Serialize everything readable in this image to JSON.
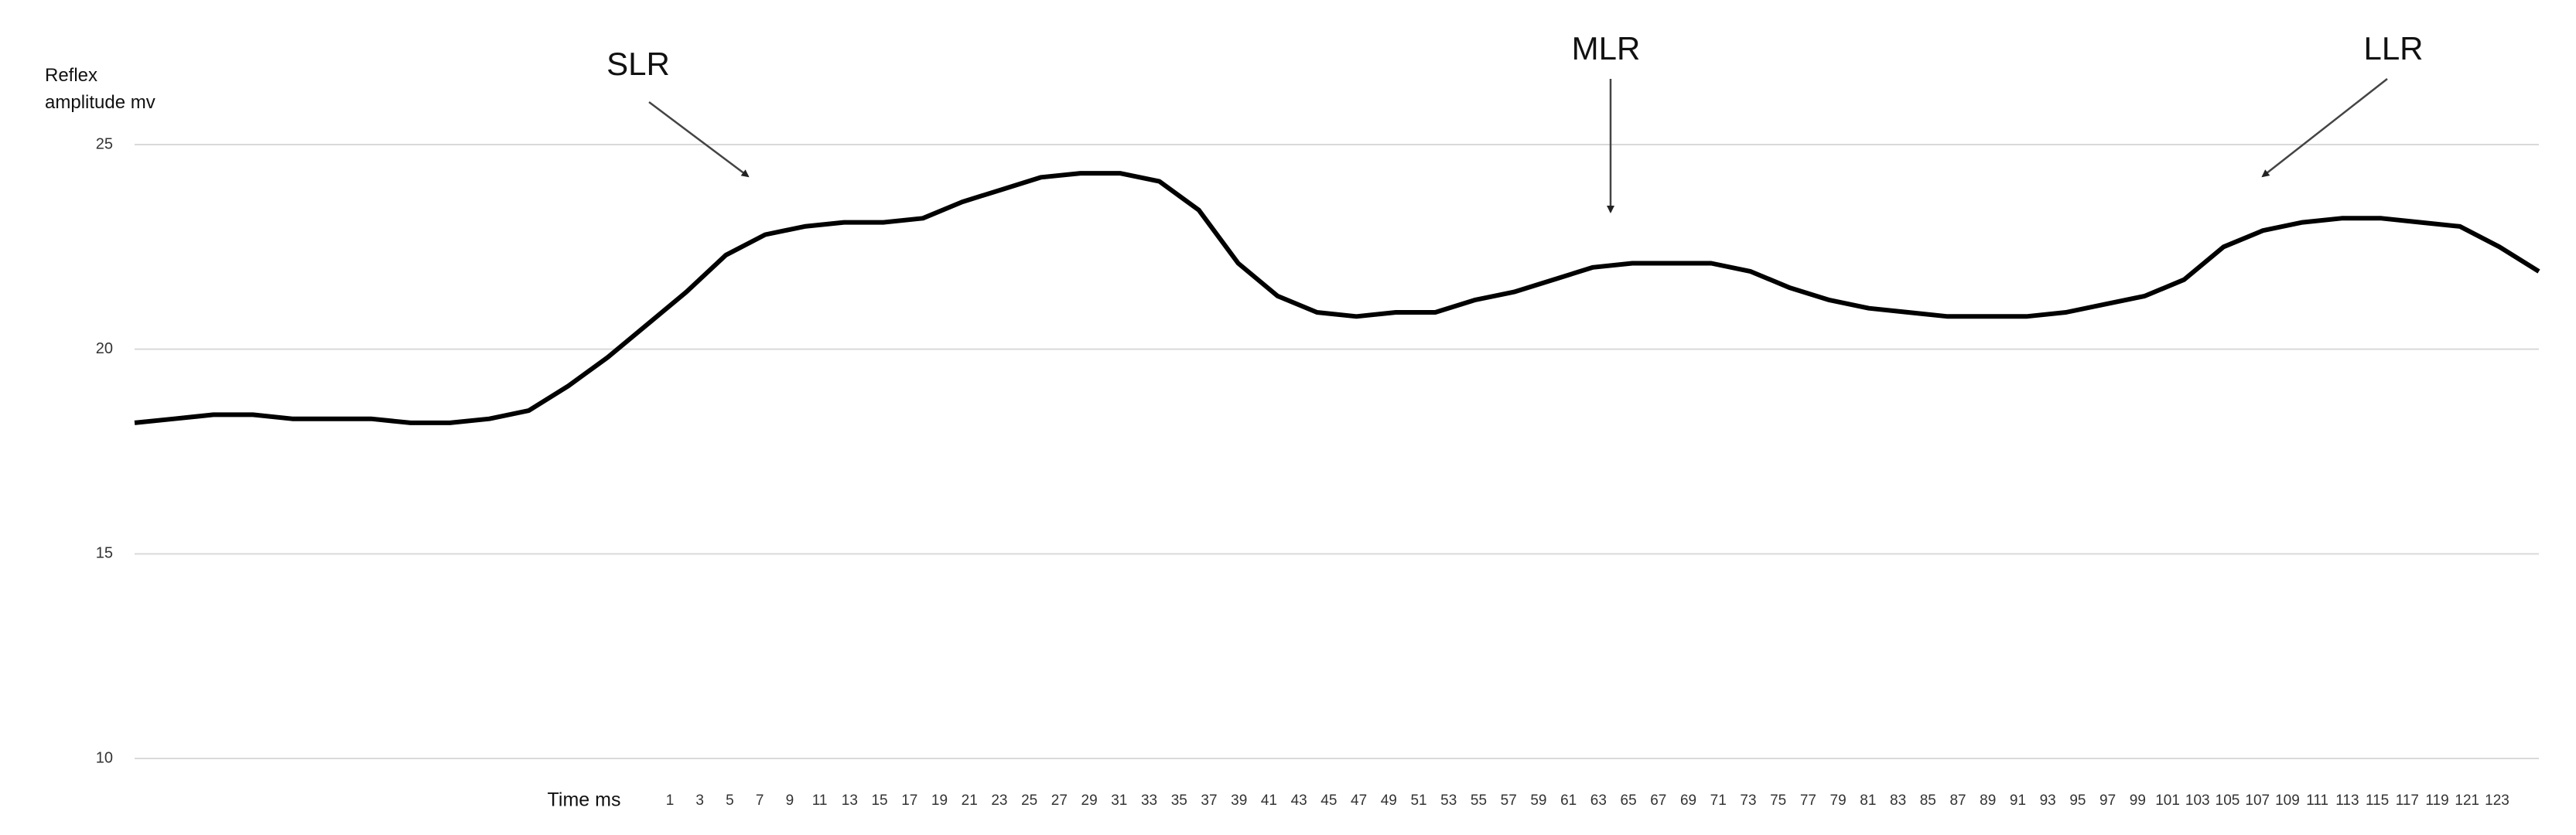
{
  "chart_data": {
    "type": "line",
    "y_label": "Reflex amplitude mv",
    "x_label": "Time ms",
    "annotations": [
      "SLR",
      "MLR",
      "LLR"
    ],
    "categories": [
      "1",
      "3",
      "5",
      "7",
      "9",
      "11",
      "13",
      "15",
      "17",
      "19",
      "21",
      "23",
      "25",
      "27",
      "29",
      "31",
      "33",
      "35",
      "37",
      "39",
      "41",
      "43",
      "45",
      "47",
      "49",
      "51",
      "53",
      "55",
      "57",
      "59",
      "61",
      "63",
      "65",
      "67",
      "69",
      "71",
      "73",
      "75",
      "77",
      "79",
      "81",
      "83",
      "85",
      "87",
      "89",
      "91",
      "93",
      "95",
      "97",
      "99",
      "101",
      "103",
      "105",
      "107",
      "109",
      "111",
      "113",
      "115",
      "117",
      "119",
      "121",
      "123"
    ],
    "values": [
      18.2,
      18.3,
      18.4,
      18.4,
      18.3,
      18.3,
      18.3,
      18.2,
      18.2,
      18.3,
      18.5,
      19.1,
      19.8,
      20.6,
      21.4,
      22.3,
      22.8,
      23.0,
      23.1,
      23.1,
      23.2,
      23.6,
      23.9,
      24.2,
      24.3,
      24.3,
      24.1,
      23.4,
      22.1,
      21.3,
      20.9,
      20.8,
      20.9,
      20.9,
      21.2,
      21.4,
      21.7,
      22.0,
      22.1,
      22.1,
      22.1,
      21.9,
      21.5,
      21.2,
      21.0,
      20.9,
      20.8,
      20.8,
      20.8,
      20.9,
      21.1,
      21.3,
      21.7,
      22.5,
      22.9,
      23.1,
      23.2,
      23.2,
      23.1,
      23.0,
      22.5,
      21.9
    ],
    "color": "#000000",
    "ylim": [
      10,
      25
    ],
    "yticks": [
      10,
      15,
      20,
      25
    ],
    "grid": true
  }
}
